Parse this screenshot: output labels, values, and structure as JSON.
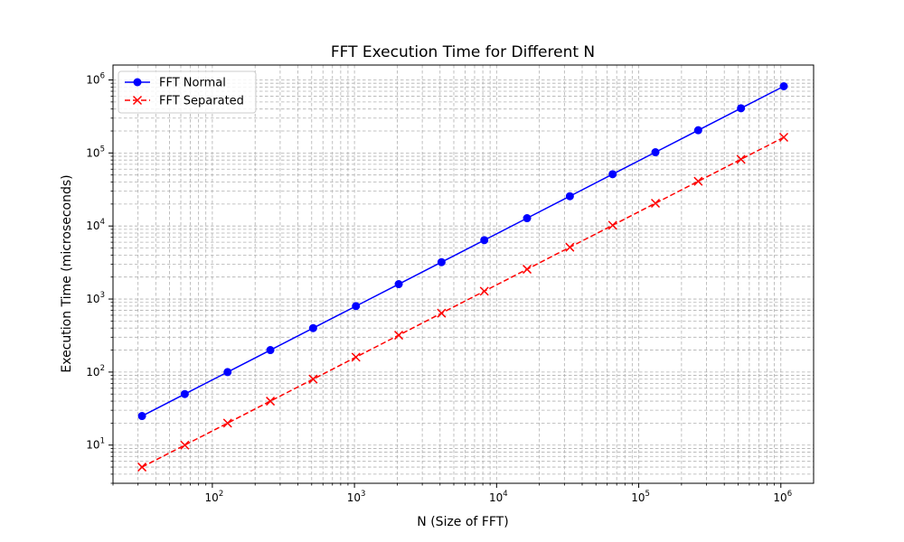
{
  "chart_data": {
    "type": "line",
    "title": "FFT Execution Time for Different N",
    "xlabel": "N (Size of FFT)",
    "ylabel": "Execution Time (microseconds)",
    "xscale": "log",
    "yscale": "log",
    "xlim": [
      20,
      1700000
    ],
    "ylim": [
      3,
      1600000
    ],
    "grid": true,
    "legend_position": "top-left",
    "x": [
      32,
      64,
      128,
      256,
      512,
      1024,
      2048,
      4096,
      8192,
      16384,
      32768,
      65536,
      131072,
      262144,
      524288,
      1048576
    ],
    "series": [
      {
        "name": "FFT Normal",
        "color": "#0000ff",
        "linestyle": "solid",
        "marker": "circle",
        "values": [
          25,
          50,
          100,
          200,
          400,
          800,
          1600,
          3200,
          6400,
          12800,
          25600,
          51200,
          102400,
          204800,
          409600,
          819200
        ]
      },
      {
        "name": "FFT Separated",
        "color": "#ff0000",
        "linestyle": "dashed",
        "marker": "x",
        "values": [
          5,
          10,
          20,
          40,
          80,
          160,
          320,
          640,
          1280,
          2560,
          5120,
          10240,
          20480,
          40960,
          81920,
          163840
        ]
      }
    ],
    "x_ticks": [
      {
        "base": "10",
        "exp": "2",
        "value": 100
      },
      {
        "base": "10",
        "exp": "3",
        "value": 1000
      },
      {
        "base": "10",
        "exp": "4",
        "value": 10000
      },
      {
        "base": "10",
        "exp": "5",
        "value": 100000
      },
      {
        "base": "10",
        "exp": "6",
        "value": 1000000
      }
    ],
    "y_ticks": [
      {
        "base": "10",
        "exp": "1",
        "value": 10
      },
      {
        "base": "10",
        "exp": "2",
        "value": 100
      },
      {
        "base": "10",
        "exp": "3",
        "value": 1000
      },
      {
        "base": "10",
        "exp": "4",
        "value": 10000
      },
      {
        "base": "10",
        "exp": "5",
        "value": 100000
      },
      {
        "base": "10",
        "exp": "6",
        "value": 1000000
      }
    ]
  }
}
